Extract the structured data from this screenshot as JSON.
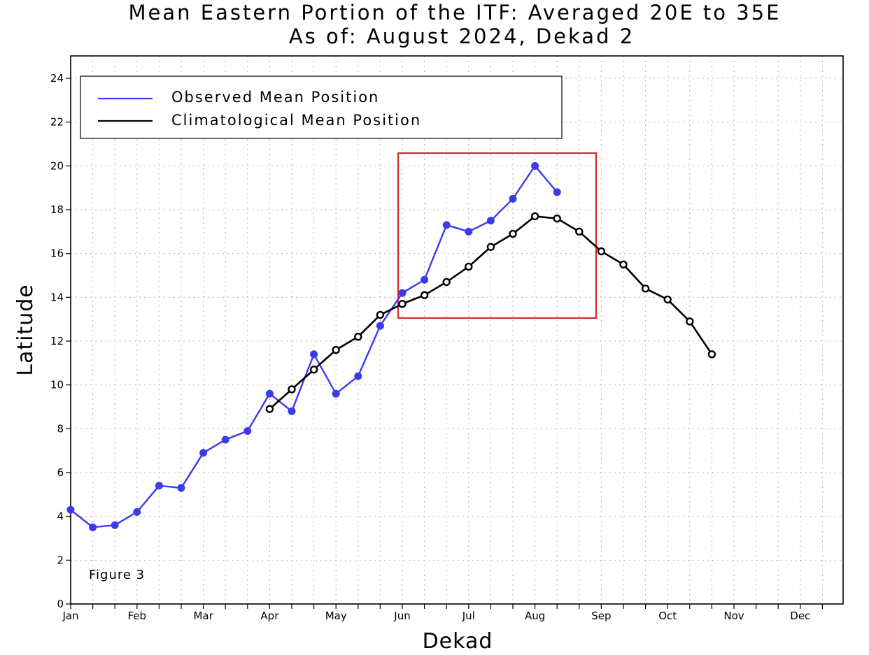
{
  "chart_data": {
    "type": "line",
    "title": "Mean Eastern Portion of the ITF: Averaged 20E to 35E",
    "subtitle": "As of: August 2024, Dekad 2",
    "xlabel": "Dekad",
    "ylabel": "Latitude",
    "ylim": [
      0,
      24
    ],
    "yticks": [
      0,
      2,
      4,
      6,
      8,
      10,
      12,
      14,
      16,
      18,
      20,
      22,
      24
    ],
    "xlim": [
      1,
      36
    ],
    "month_labels": [
      "Jan",
      "Feb",
      "Mar",
      "Apr",
      "May",
      "Jun",
      "Jul",
      "Aug",
      "Sep",
      "Oct",
      "Nov",
      "Dec"
    ],
    "grid": true,
    "legend_position": "top-left",
    "series": [
      {
        "name": "Observed Mean Position",
        "color": "#3b3bea",
        "x": [
          1,
          2,
          3,
          4,
          5,
          6,
          7,
          8,
          9,
          10,
          11,
          12,
          13,
          14,
          15,
          16,
          17,
          18,
          19,
          20,
          21,
          22,
          23
        ],
        "values": [
          4.3,
          3.5,
          3.6,
          4.2,
          5.4,
          5.3,
          6.9,
          7.5,
          7.9,
          9.6,
          8.8,
          11.4,
          9.6,
          10.4,
          12.7,
          14.2,
          14.8,
          17.3,
          17.0,
          17.5,
          18.5,
          20.0,
          18.8
        ]
      },
      {
        "name": "Climatological Mean Position",
        "color": "#000000",
        "x": [
          10,
          11,
          12,
          13,
          14,
          15,
          16,
          17,
          18,
          19,
          20,
          21,
          22,
          23,
          24,
          25,
          26,
          27,
          28,
          29,
          30
        ],
        "values": [
          8.9,
          9.8,
          10.7,
          11.6,
          12.2,
          13.2,
          13.7,
          14.1,
          14.7,
          15.4,
          16.3,
          16.9,
          17.7,
          17.6,
          17.0,
          16.1,
          15.5,
          14.4,
          13.9,
          12.9,
          11.4
        ]
      }
    ],
    "annotations": {
      "figure_label": "Figure 3",
      "highlight_box_color": "#d42a2a"
    }
  }
}
